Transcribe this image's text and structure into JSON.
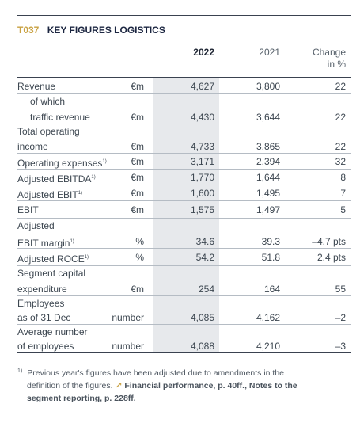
{
  "table": {
    "code": "T037",
    "title": "KEY FIGURES LOGISTICS",
    "headers": {
      "y2022": "2022",
      "y2021": "2021",
      "change_line1": "Change",
      "change_line2": "in %"
    },
    "rows": [
      {
        "label1": "Revenue",
        "label2": "",
        "sup": "",
        "unit": "€m",
        "v2022": "4,627",
        "v2021": "3,800",
        "change": "22"
      },
      {
        "label1": "of which",
        "label2": "traffic revenue",
        "sup": "",
        "unit": "€m",
        "v2022": "4,430",
        "v2021": "3,644",
        "change": "22"
      },
      {
        "label1": "Total operating",
        "label2": "income",
        "sup": "",
        "unit": "€m",
        "v2022": "4,733",
        "v2021": "3,865",
        "change": "22"
      },
      {
        "label1": "Operating expenses",
        "label2": "",
        "sup": "1)",
        "unit": "€m",
        "v2022": "3,171",
        "v2021": "2,394",
        "change": "32"
      },
      {
        "label1": "Adjusted EBITDA",
        "label2": "",
        "sup": "1)",
        "unit": "€m",
        "v2022": "1,770",
        "v2021": "1,644",
        "change": "8"
      },
      {
        "label1": "Adjusted EBIT",
        "label2": "",
        "sup": "1)",
        "unit": "€m",
        "v2022": "1,600",
        "v2021": "1,495",
        "change": "7"
      },
      {
        "label1": "EBIT",
        "label2": "",
        "sup": "",
        "unit": "€m",
        "v2022": "1,575",
        "v2021": "1,497",
        "change": "5"
      },
      {
        "label1": "Adjusted",
        "label2": "EBIT margin",
        "sup": "1)",
        "unit": "%",
        "v2022": "34.6",
        "v2021": "39.3",
        "change": "–4.7 pts"
      },
      {
        "label1": "Adjusted ROCE",
        "label2": "",
        "sup": "1)",
        "unit": "%",
        "v2022": "54.2",
        "v2021": "51.8",
        "change": "2.4 pts"
      },
      {
        "label1": "Segment capital",
        "label2": "expenditure",
        "sup": "",
        "unit": "€m",
        "v2022": "254",
        "v2021": "164",
        "change": "55"
      },
      {
        "label1": "Employees",
        "label2": "as of 31 Dec",
        "sup": "",
        "unit": "number",
        "v2022": "4,085",
        "v2021": "4,162",
        "change": "–2"
      },
      {
        "label1": "Average number",
        "label2": "of employees",
        "sup": "",
        "unit": "number",
        "v2022": "4,088",
        "v2021": "4,210",
        "change": "–3"
      }
    ]
  },
  "footnote": {
    "mark": "1)",
    "text1": "Previous year's figures have been adjusted due to amendments in the",
    "text2": "definition of the figures.",
    "link1": "Financial performance, p. 40ff., Notes to the",
    "link2": "segment reporting, p. 228ff."
  }
}
